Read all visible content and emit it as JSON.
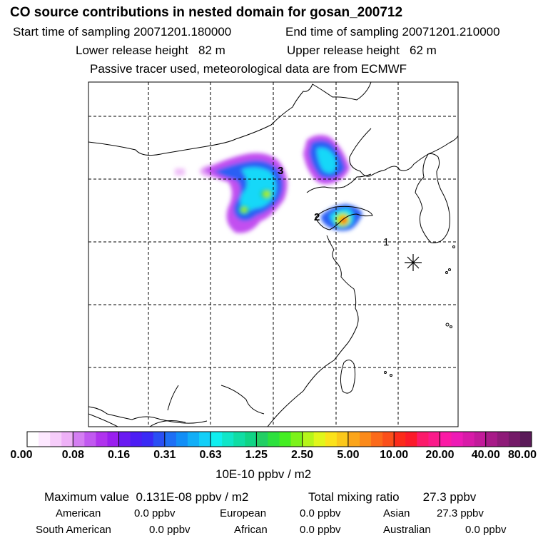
{
  "chart_data": {
    "type": "heatmap",
    "title": "CO  source contributions in nested domain for gosan_200712",
    "start_time_label": "Start time of sampling",
    "start_time": "20071201.180000",
    "end_time_label": "End time of sampling",
    "end_time": "20071201.210000",
    "lower_release_label": "Lower release height",
    "lower_release": "82 m",
    "upper_release_label": "Upper release height",
    "upper_release": "62 m",
    "note": "Passive tracer used, meteorological data are from ECMWF",
    "map_labels": [
      "1",
      "2",
      "3"
    ],
    "colorbar": {
      "ticks": [
        "0.00",
        "0.08",
        "0.16",
        "0.31",
        "0.63",
        "1.25",
        "2.50",
        "5.00",
        "10.00",
        "20.00",
        "40.00",
        "80.00"
      ],
      "colors": [
        "#ffffff",
        "#fde8ff",
        "#f6cdfa",
        "#eeb1f7",
        "#d47ef2",
        "#c159f0",
        "#b033ee",
        "#9a1fef",
        "#6a1bf2",
        "#4d1df4",
        "#3a2af5",
        "#2a4ff4",
        "#1e6ff5",
        "#128ef6",
        "#12aef7",
        "#12cff8",
        "#10efef",
        "#10e6c8",
        "#10dda4",
        "#10d485",
        "#22cf64",
        "#2de13e",
        "#44ee22",
        "#7cf21a",
        "#b6f51a",
        "#e1f61a",
        "#fbe21a",
        "#fbc81a",
        "#fba51a",
        "#fb8a1a",
        "#fb6a1a",
        "#fb4f1a",
        "#fb2b1a",
        "#fb1a2a",
        "#fb1a6a",
        "#fb1a8a",
        "#fb1aa5",
        "#ed1ab5",
        "#d81aa8",
        "#c21a9a",
        "#a81a88",
        "#8e1a78",
        "#741a68",
        "#5a1a58"
      ],
      "unit": "10E-10 ppbv / m2"
    },
    "max_value_label": "Maximum value",
    "max_value": "0.131E-08 ppbv / m2",
    "total_label": "Total mixing ratio",
    "total": "27.3 ppbv",
    "regions": [
      {
        "name": "American",
        "value": "0.0 ppbv"
      },
      {
        "name": "European",
        "value": "0.0 ppbv"
      },
      {
        "name": "Asian",
        "value": "27.3 ppbv"
      },
      {
        "name": "South American",
        "value": "0.0 ppbv"
      },
      {
        "name": "African",
        "value": "0.0 ppbv"
      },
      {
        "name": "Australian",
        "value": "0.0 ppbv"
      }
    ]
  }
}
